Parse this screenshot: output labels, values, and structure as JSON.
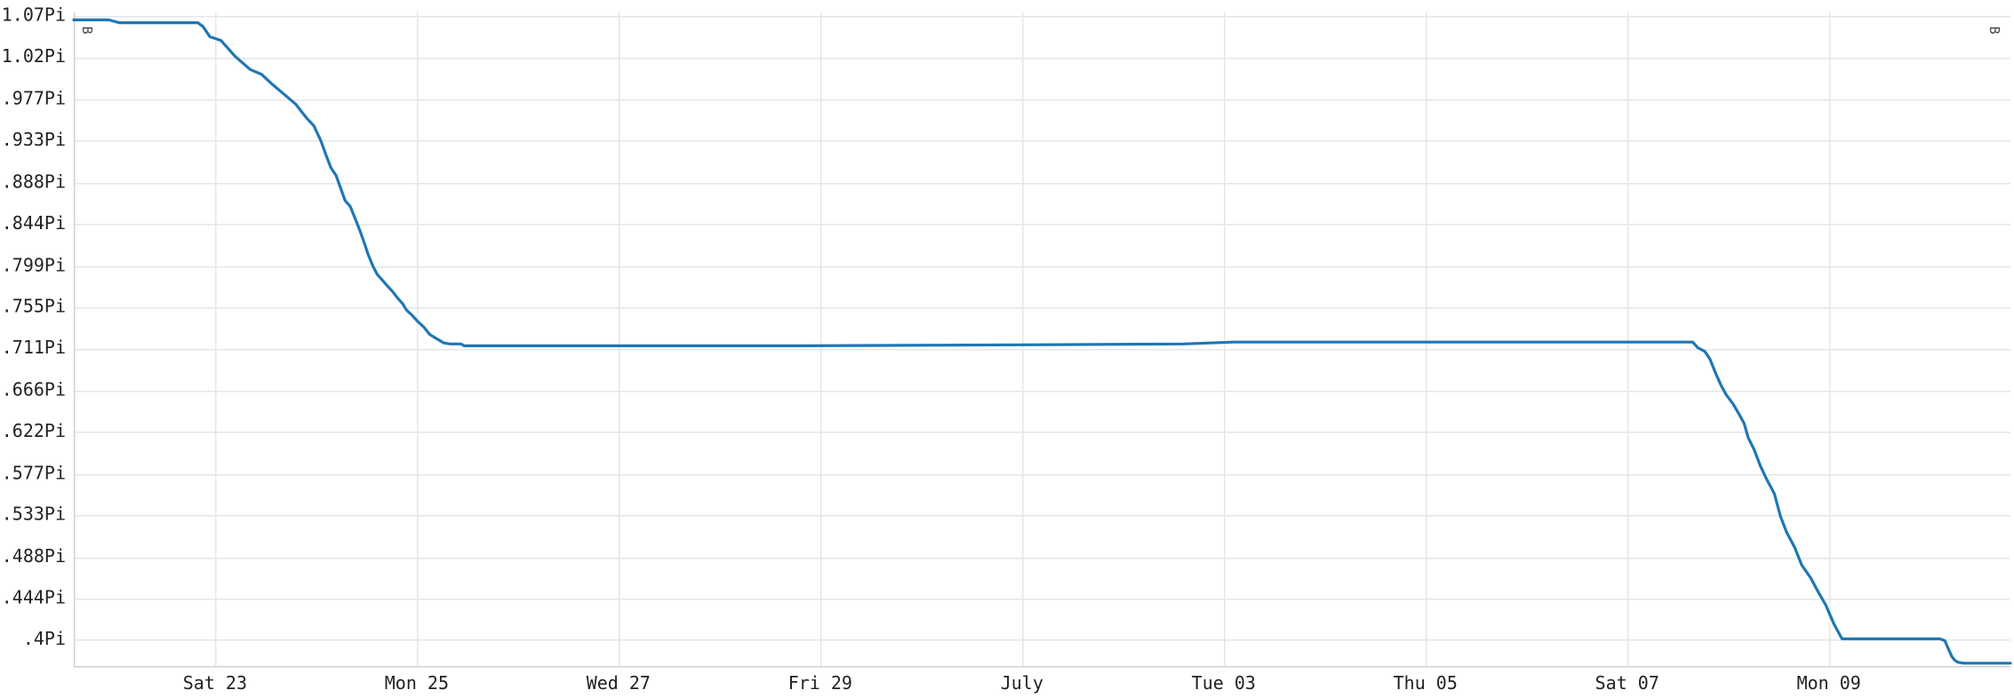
{
  "chart_data": {
    "type": "line",
    "title": "",
    "xlabel": "",
    "ylabel": "",
    "grid": true,
    "legend": "none",
    "ylim": [
      0.372,
      1.07
    ],
    "xlim": [
      0,
      19.2
    ],
    "x_ticks": [
      {
        "x": 1.4,
        "label": "Sat 23"
      },
      {
        "x": 3.4,
        "label": "Mon 25"
      },
      {
        "x": 5.4,
        "label": "Wed 27"
      },
      {
        "x": 7.4,
        "label": "Fri 29"
      },
      {
        "x": 9.4,
        "label": "July"
      },
      {
        "x": 11.4,
        "label": "Tue 03"
      },
      {
        "x": 13.4,
        "label": "Thu 05"
      },
      {
        "x": 15.4,
        "label": "Sat 07"
      },
      {
        "x": 17.4,
        "label": "Mon 09"
      }
    ],
    "y_ticks": [
      {
        "y": 1.066,
        "label": "1.07Pi"
      },
      {
        "y": 1.022,
        "label": "1.02Pi"
      },
      {
        "y": 0.977,
        "label": ".977Pi"
      },
      {
        "y": 0.933,
        "label": ".933Pi"
      },
      {
        "y": 0.888,
        "label": ".888Pi"
      },
      {
        "y": 0.844,
        "label": ".844Pi"
      },
      {
        "y": 0.799,
        "label": ".799Pi"
      },
      {
        "y": 0.755,
        "label": ".755Pi"
      },
      {
        "y": 0.711,
        "label": ".711Pi"
      },
      {
        "y": 0.666,
        "label": ".666Pi"
      },
      {
        "y": 0.622,
        "label": ".622Pi"
      },
      {
        "y": 0.577,
        "label": ".577Pi"
      },
      {
        "y": 0.533,
        "label": ".533Pi"
      },
      {
        "y": 0.488,
        "label": ".488Pi"
      },
      {
        "y": 0.444,
        "label": ".444Pi"
      },
      {
        "y": 0.4,
        "label": ".4Pi"
      }
    ],
    "series": [
      {
        "name": "",
        "color": "#1f77b4",
        "x": [
          0,
          0.35,
          0.45,
          1.23,
          1.28,
          1.35,
          1.46,
          1.6,
          1.75,
          1.86,
          1.95,
          2.08,
          2.2,
          2.31,
          2.38,
          2.45,
          2.5,
          2.55,
          2.6,
          2.64,
          2.69,
          2.74,
          2.8,
          2.84,
          2.88,
          2.92,
          2.97,
          3.01,
          3.06,
          3.1,
          3.16,
          3.21,
          3.26,
          3.3,
          3.35,
          3.41,
          3.47,
          3.53,
          3.59,
          3.67,
          3.73,
          3.84,
          3.87,
          7.2,
          9.4,
          11.0,
          11.5,
          15.4,
          16.05,
          16.1,
          16.17,
          16.22,
          16.28,
          16.33,
          16.38,
          16.45,
          16.51,
          16.56,
          16.6,
          16.66,
          16.72,
          16.78,
          16.82,
          16.86,
          16.92,
          16.98,
          17.06,
          17.13,
          17.22,
          17.29,
          17.37,
          17.45,
          17.53,
          17.59,
          17.65,
          17.71,
          17.78,
          17.86,
          17.94,
          18.0,
          18.06,
          18.29,
          18.5,
          18.55,
          18.59,
          18.62,
          18.65,
          18.68,
          18.74,
          18.8,
          18.86,
          18.95,
          19.06,
          19.1,
          19.14,
          19.16,
          19.22,
          19.3
        ],
        "values": [
          1.062,
          1.062,
          1.059,
          1.059,
          1.055,
          1.044,
          1.04,
          1.023,
          1.009,
          1.004,
          0.995,
          0.983,
          0.972,
          0.957,
          0.949,
          0.933,
          0.918,
          0.904,
          0.896,
          0.884,
          0.869,
          0.863,
          0.847,
          0.836,
          0.824,
          0.811,
          0.798,
          0.79,
          0.784,
          0.779,
          0.772,
          0.765,
          0.759,
          0.752,
          0.747,
          0.74,
          0.734,
          0.726,
          0.722,
          0.717,
          0.716,
          0.716,
          0.714,
          0.714,
          0.715,
          0.716,
          0.718,
          0.718,
          0.718,
          0.712,
          0.708,
          0.7,
          0.684,
          0.672,
          0.662,
          0.652,
          0.641,
          0.631,
          0.616,
          0.603,
          0.586,
          0.572,
          0.564,
          0.556,
          0.532,
          0.515,
          0.499,
          0.48,
          0.466,
          0.452,
          0.437,
          0.417,
          0.401,
          0.401,
          0.401,
          0.401,
          0.401,
          0.401,
          0.401,
          0.401,
          0.401,
          0.401,
          0.401,
          0.399,
          0.389,
          0.382,
          0.378,
          0.376,
          0.375,
          0.375,
          0.375,
          0.375,
          0.375,
          0.375,
          0.375,
          0.375,
          0.375,
          0.375
        ]
      }
    ],
    "corner_glyphs": {
      "left": "B",
      "right": "B"
    }
  }
}
